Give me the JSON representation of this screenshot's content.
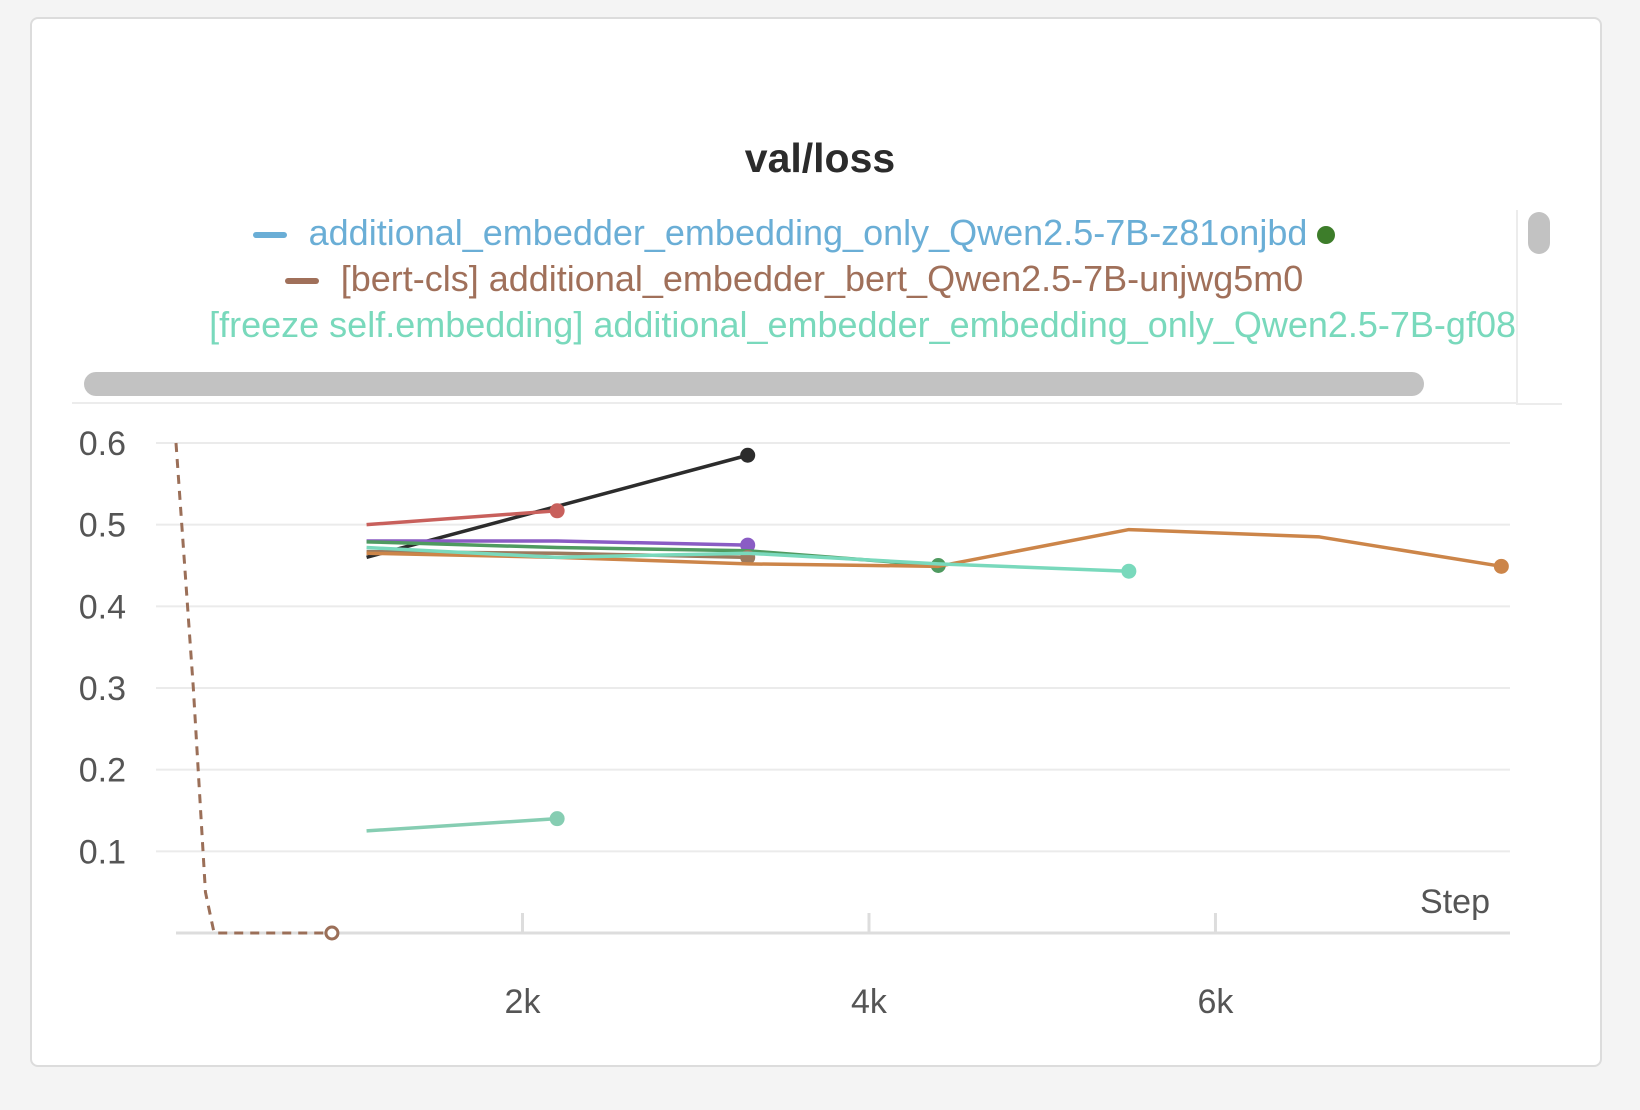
{
  "chart_data": {
    "type": "line",
    "title": "val/loss",
    "xlabel": "Step",
    "ylabel": "",
    "xlim": [
      0,
      7700
    ],
    "ylim": [
      0,
      0.6
    ],
    "x_ticks": [
      2000,
      4000,
      6000
    ],
    "x_tick_labels": [
      "2k",
      "4k",
      "6k"
    ],
    "y_ticks": [
      0.1,
      0.2,
      0.3,
      0.4,
      0.5,
      0.6
    ],
    "y_tick_labels": [
      "0.1",
      "0.2",
      "0.3",
      "0.4",
      "0.5",
      "0.6"
    ],
    "grid": true,
    "legend_position": "top",
    "legend": [
      {
        "label": "additional_embedder_embedding_only_Qwen2.5-7B-z81onjbd",
        "color": "#6aaed6",
        "marker_color": "#3d7d2a"
      },
      {
        "label": "[bert-cls] additional_embedder_bert_Qwen2.5-7B-unjwg5m0",
        "color": "#a0705a"
      },
      {
        "label": "[freeze self.embedding] additional_embedder_embedding_only_Qwen2.5-7B-gf08",
        "color": "#79d9bc"
      }
    ],
    "series": [
      {
        "color": "#9b6f58",
        "dashed": true,
        "x": [
          0,
          100,
          170,
          220,
          900
        ],
        "y": [
          0.6,
          0.3,
          0.05,
          0.0,
          0.0
        ]
      },
      {
        "color": "#2c2c2c",
        "x": [
          1100,
          3300
        ],
        "y": [
          0.46,
          0.585
        ]
      },
      {
        "color": "#c8605c",
        "x": [
          1100,
          2200
        ],
        "y": [
          0.5,
          0.517
        ]
      },
      {
        "color": "#8a5cc4",
        "x": [
          1100,
          2200,
          3300
        ],
        "y": [
          0.48,
          0.48,
          0.475
        ]
      },
      {
        "color": "#4f9a60",
        "x": [
          1100,
          2200,
          3300,
          4400
        ],
        "y": [
          0.479,
          0.472,
          0.468,
          0.45
        ]
      },
      {
        "color": "#9c7a5e",
        "x": [
          1100,
          2200,
          3300
        ],
        "y": [
          0.467,
          0.465,
          0.46
        ]
      },
      {
        "color": "#cc8549",
        "x": [
          1100,
          2200,
          3300,
          4400,
          5500,
          6600,
          7650
        ],
        "y": [
          0.465,
          0.46,
          0.452,
          0.449,
          0.494,
          0.485,
          0.449
        ]
      },
      {
        "color": "#79d9bc",
        "x": [
          1100,
          2200,
          3300,
          4400,
          5500
        ],
        "y": [
          0.472,
          0.46,
          0.465,
          0.452,
          0.443
        ]
      },
      {
        "color": "#86cdb2",
        "x": [
          1100,
          2200
        ],
        "y": [
          0.125,
          0.14
        ]
      }
    ]
  }
}
